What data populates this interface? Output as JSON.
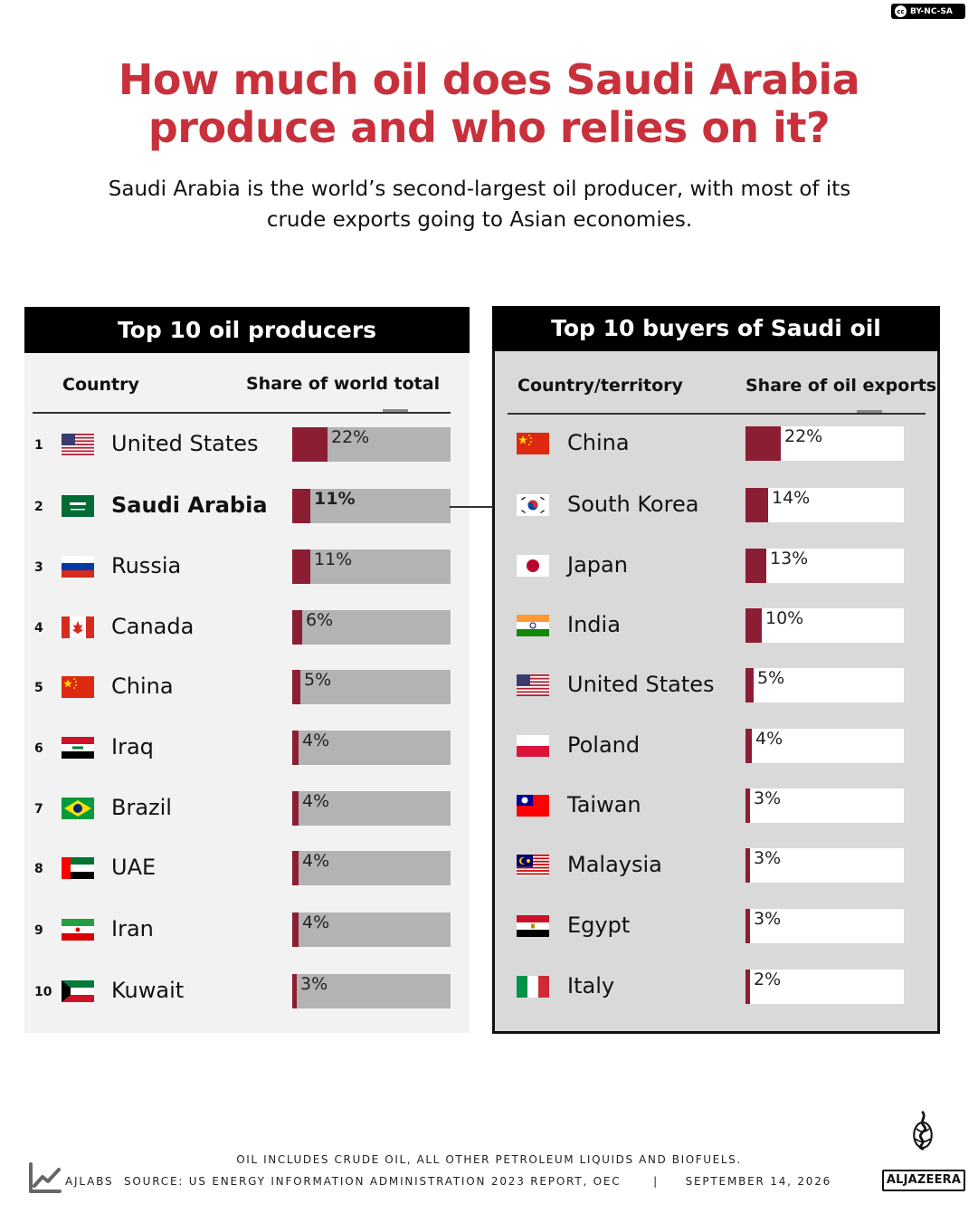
{
  "license": {
    "cc": "cc",
    "label": "BY-NC-SA"
  },
  "title_line1": "How much oil does Saudi Arabia",
  "title_line2": "produce and who relies on it?",
  "subtitle_line1": "Saudi Arabia is the world’s second-largest oil producer, with most of its",
  "subtitle_line2": "crude exports going to Asian economies.",
  "colors": {
    "accent": "#c8313b",
    "bar": "#8b1e33",
    "left_track": "#b3b3b3",
    "right_track": "#ffffff"
  },
  "chart_data": [
    {
      "type": "bar",
      "title": "Top 10 oil producers",
      "column_country": "Country",
      "column_value": "Share of world total",
      "categories": [
        "United States",
        "Saudi Arabia",
        "Russia",
        "Canada",
        "China",
        "Iraq",
        "Brazil",
        "UAE",
        "Iran",
        "Kuwait"
      ],
      "ranks": [
        "1",
        "2",
        "3",
        "4",
        "5",
        "6",
        "7",
        "8",
        "9",
        "10"
      ],
      "values": [
        22,
        11,
        11,
        6,
        5,
        4,
        4,
        4,
        4,
        3
      ],
      "labels": [
        "22%",
        "11%",
        "11%",
        "6%",
        "5%",
        "4%",
        "4%",
        "4%",
        "4%",
        "3%"
      ],
      "highlight": "Saudi Arabia",
      "flags": [
        "us",
        "sa",
        "ru",
        "ca",
        "cn",
        "iq",
        "br",
        "ae",
        "ir",
        "kw"
      ]
    },
    {
      "type": "bar",
      "title": "Top 10 buyers of Saudi oil",
      "column_country": "Country/territory",
      "column_value": "Share of oil exports",
      "categories": [
        "China",
        "South Korea",
        "Japan",
        "India",
        "United States",
        "Poland",
        "Taiwan",
        "Malaysia",
        "Egypt",
        "Italy"
      ],
      "values": [
        22,
        14,
        13,
        10,
        5,
        4,
        3,
        3,
        3,
        2
      ],
      "labels": [
        "22%",
        "14%",
        "13%",
        "10%",
        "5%",
        "4%",
        "3%",
        "3%",
        "3%",
        "2%"
      ],
      "flags": [
        "cn",
        "kr",
        "jp",
        "in",
        "us",
        "pl",
        "tw",
        "my",
        "eg",
        "it"
      ]
    }
  ],
  "footnote": "OIL INCLUDES CRUDE OIL, ALL OTHER PETROLEUM LIQUIDS AND BIOFUELS.",
  "footer": {
    "brand": "AJLABS",
    "source": "SOURCE:  US ENERGY INFORMATION ADMINISTRATION 2023 REPORT, OEC",
    "separator": "|",
    "date": "SEPTEMBER 14, 2026"
  },
  "logo_text": "ALJAZEERA"
}
